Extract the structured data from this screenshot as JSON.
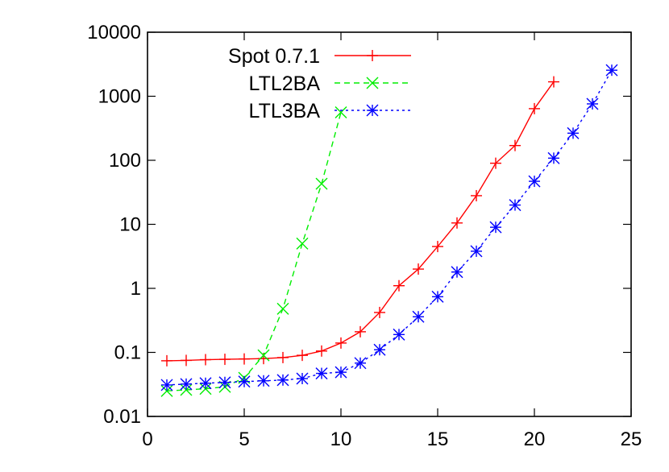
{
  "chart_data": {
    "type": "line",
    "title": "",
    "xlabel": "",
    "ylabel": "",
    "xlim": [
      0,
      25
    ],
    "ylim": [
      0.01,
      10000
    ],
    "yscale": "log",
    "grid": false,
    "legend_position": "top-left",
    "x_ticks": [
      0,
      5,
      10,
      15,
      20,
      25
    ],
    "x_tick_labels": [
      "0",
      "5",
      "10",
      "15",
      "20",
      "25"
    ],
    "y_ticks": [
      0.01,
      0.1,
      1,
      10,
      100,
      1000,
      10000
    ],
    "y_tick_labels": [
      "0.01",
      "0.1",
      "1",
      "10",
      "100",
      "1000",
      "10000"
    ],
    "series": [
      {
        "name": "Spot 0.7.1",
        "color": "#ff0000",
        "marker": "plus",
        "line": "solid",
        "x": [
          1,
          2,
          3,
          4,
          5,
          6,
          7,
          8,
          9,
          10,
          11,
          12,
          13,
          14,
          15,
          16,
          17,
          18,
          19,
          20,
          21
        ],
        "y": [
          0.074,
          0.075,
          0.077,
          0.078,
          0.079,
          0.08,
          0.083,
          0.09,
          0.105,
          0.14,
          0.21,
          0.42,
          1.1,
          2.0,
          4.5,
          10.5,
          28,
          90,
          170,
          640,
          1680
        ]
      },
      {
        "name": "LTL2BA",
        "color": "#00ee00",
        "marker": "cross",
        "line": "dashed",
        "x": [
          1,
          2,
          3,
          4,
          5,
          6,
          7,
          8,
          9,
          10
        ],
        "y": [
          0.025,
          0.026,
          0.027,
          0.029,
          0.04,
          0.09,
          0.48,
          5.0,
          43,
          560
        ]
      },
      {
        "name": "LTL3BA",
        "color": "#0000ff",
        "marker": "star",
        "line": "dotted",
        "x": [
          1,
          2,
          3,
          4,
          5,
          6,
          7,
          8,
          9,
          10,
          11,
          12,
          13,
          14,
          15,
          16,
          17,
          18,
          19,
          20,
          21,
          22,
          23,
          24
        ],
        "y": [
          0.031,
          0.032,
          0.033,
          0.034,
          0.035,
          0.036,
          0.037,
          0.039,
          0.047,
          0.049,
          0.068,
          0.11,
          0.19,
          0.36,
          0.74,
          1.8,
          3.8,
          9.0,
          20,
          47,
          108,
          265,
          760,
          2550
        ]
      }
    ]
  }
}
